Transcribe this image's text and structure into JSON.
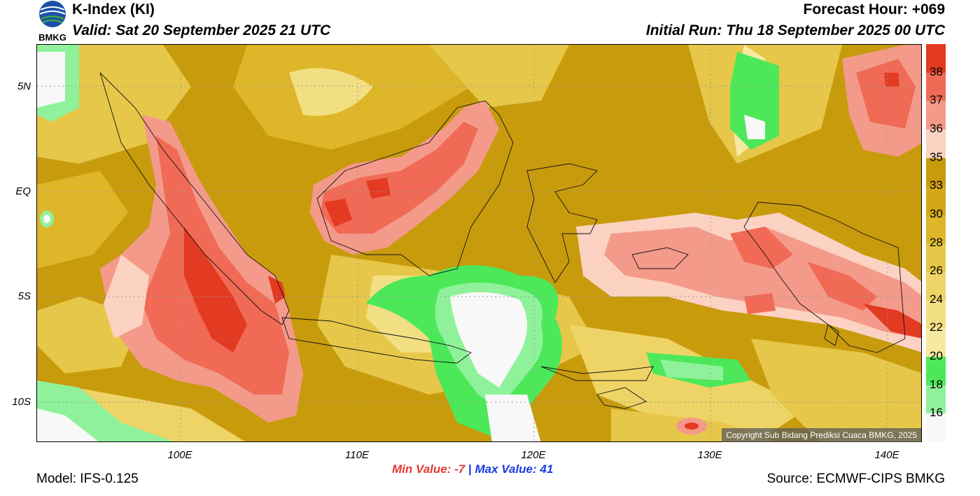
{
  "header": {
    "title": "K-Index (KI)",
    "valid": "Valid: Sat 20 September 2025 21 UTC",
    "forecast_hour": "Forecast Hour: +069",
    "initial_run": "Initial Run: Thu 18 September 2025 00 UTC"
  },
  "logo": {
    "text": "BMKG"
  },
  "map": {
    "lat_labels": [
      "5N",
      "EQ",
      "5S",
      "10S"
    ],
    "lon_labels": [
      "100E",
      "110E",
      "120E",
      "130E",
      "140E"
    ],
    "copyright": "Copyright Sub Bidang Prediksi Cuaca BMKG, 2025"
  },
  "colorbar": {
    "levels": [
      "38",
      "37",
      "36",
      "35",
      "33",
      "30",
      "28",
      "26",
      "24",
      "22",
      "20",
      "18",
      "16"
    ],
    "colors": [
      "#e33a22",
      "#f06a55",
      "#f49a8a",
      "#fcd2c2",
      "#c89b0d",
      "#d4a718",
      "#ddb62a",
      "#e6c749",
      "#eed466",
      "#f3df83",
      "#f7e9a0",
      "#4ce85a",
      "#8ff29a",
      "#f8f8f8"
    ]
  },
  "stats": {
    "min_label": "Min Value:",
    "min_value": "-7",
    "separator": "|",
    "max_label": "Max Value:",
    "max_value": "41"
  },
  "footer": {
    "model": "Model: IFS-0.125",
    "source": "Source: ECMWF-CIPS BMKG"
  }
}
